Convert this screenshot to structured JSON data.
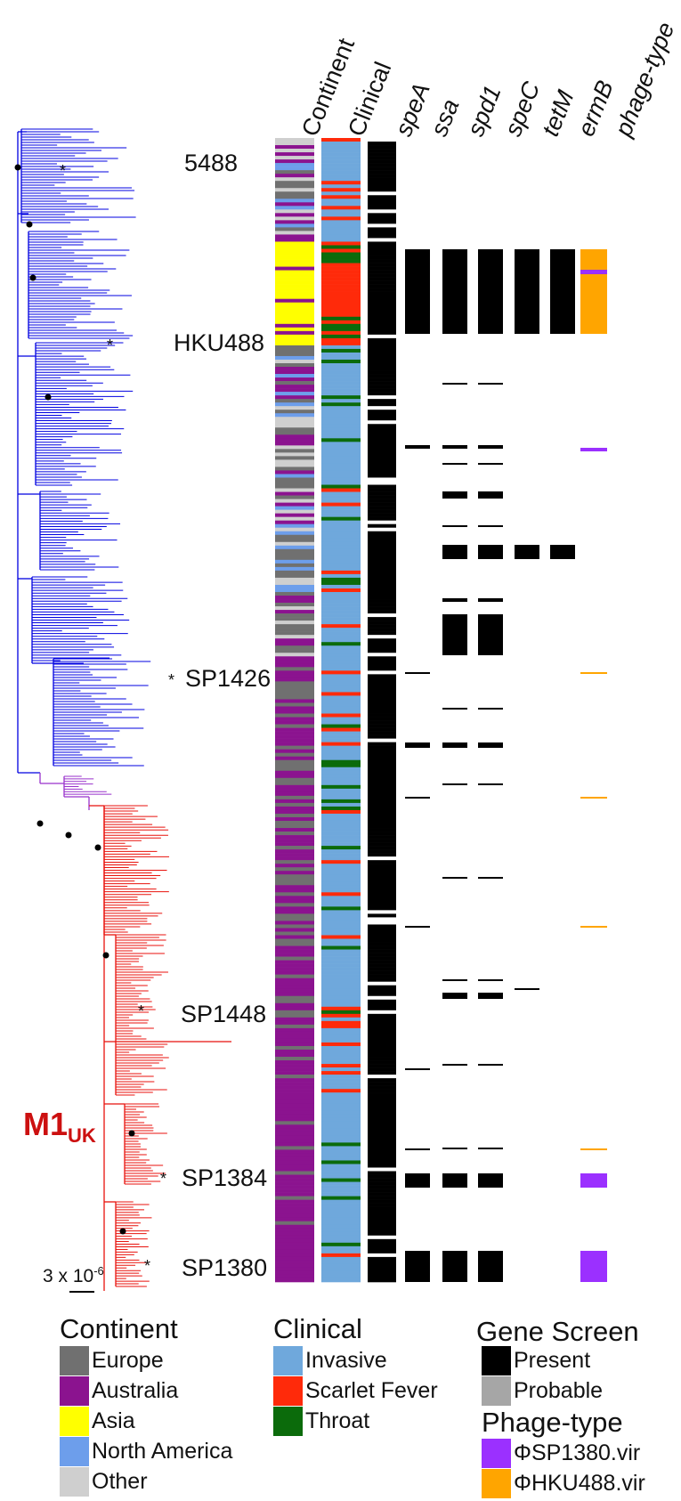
{
  "column_headers": [
    "Continent",
    "Clinical",
    "speA",
    "ssa",
    "spd1",
    "speC",
    "tetM",
    "ermB",
    "phage-type"
  ],
  "strain_labels": [
    "5488",
    "HKU488",
    "SP1426",
    "SP1448",
    "SP1384",
    "SP1380"
  ],
  "clade_label": {
    "main": "M1",
    "sub": "UK"
  },
  "scale_bar": {
    "text": "3 x 10",
    "exponent": "-6"
  },
  "legend": {
    "continent": {
      "title": "Continent",
      "items": [
        {
          "label": "Europe",
          "color": "#707070"
        },
        {
          "label": "Australia",
          "color": "#8b138f"
        },
        {
          "label": "Asia",
          "color": "#ffff00"
        },
        {
          "label": "North America",
          "color": "#6d9eeb"
        },
        {
          "label": "Other",
          "color": "#cfcfcf"
        }
      ]
    },
    "clinical": {
      "title": "Clinical",
      "items": [
        {
          "label": "Invasive",
          "color": "#6fa8dc"
        },
        {
          "label": "Scarlet Fever",
          "color": "#ff2a0a"
        },
        {
          "label": "Throat",
          "color": "#0b6b0b"
        }
      ]
    },
    "gene_screen": {
      "title": "Gene Screen",
      "items": [
        {
          "label": "Present",
          "color": "#000000"
        },
        {
          "label": "Probable",
          "color": "#a6a6a6"
        }
      ]
    },
    "phage_type": {
      "title": "Phage-type",
      "items": [
        {
          "label": "ΦSP1380.vir",
          "color": "#9b30ff"
        },
        {
          "label": "ΦHKU488.vir",
          "color": "#ffa500"
        }
      ]
    }
  },
  "colors": {
    "tree_blue": "#0000e0",
    "tree_purple": "#9932cc",
    "tree_red": "#e8120c"
  }
}
